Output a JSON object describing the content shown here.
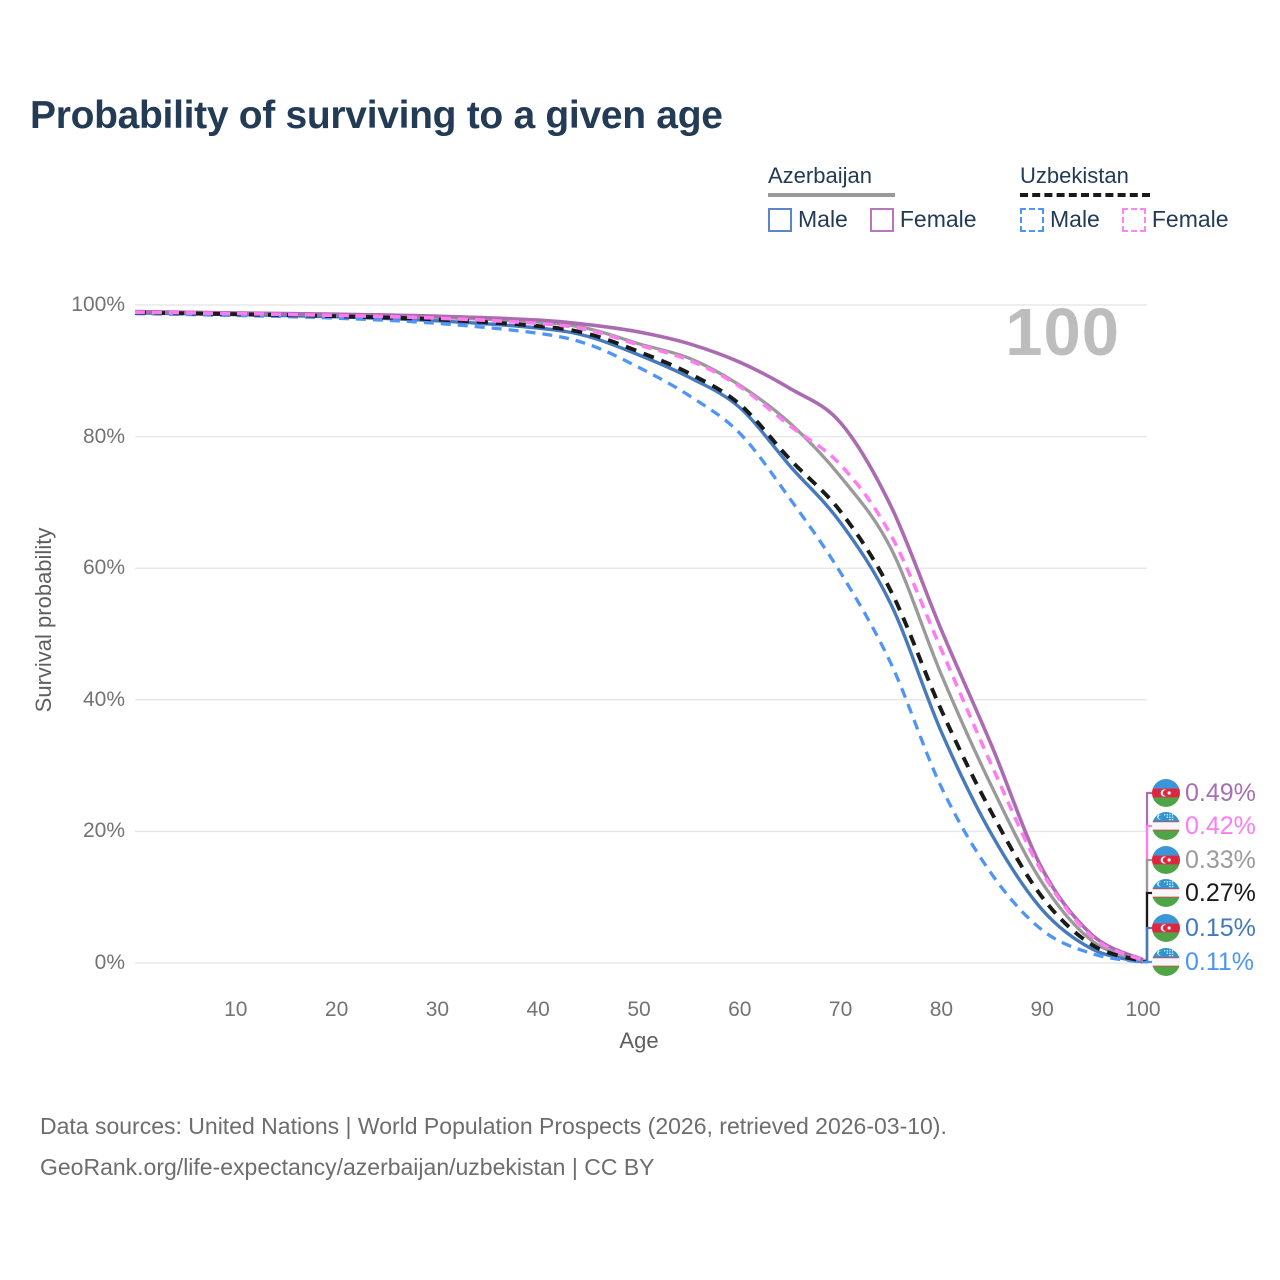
{
  "title": "Probability of surviving to a given age",
  "watermark": "100",
  "legend": {
    "groups": [
      {
        "name": "Azerbaijan",
        "line_style": "solid",
        "underline_color": "#9a9a9a",
        "items": [
          {
            "label": "Male",
            "color": "#5b87c7",
            "dashed": false
          },
          {
            "label": "Female",
            "color": "#b877bd",
            "dashed": false
          }
        ]
      },
      {
        "name": "Uzbekistan",
        "line_style": "dashed",
        "underline_color": "#1a1a1a",
        "items": [
          {
            "label": "Male",
            "color": "#4e95f7",
            "dashed": true
          },
          {
            "label": "Female",
            "color": "#ff85f0",
            "dashed": true
          }
        ]
      }
    ]
  },
  "chart_data": {
    "type": "line",
    "title": "Probability of surviving to a given age",
    "xlabel": "Age",
    "ylabel": "Survival probability",
    "xlim": [
      0,
      100
    ],
    "ylim": [
      0,
      100
    ],
    "grid": "horizontal-only",
    "x_ticks": [
      10,
      20,
      30,
      40,
      50,
      60,
      70,
      80,
      90,
      100
    ],
    "y_ticks": [
      {
        "value": 0,
        "label": "0%"
      },
      {
        "value": 20,
        "label": "20%"
      },
      {
        "value": 40,
        "label": "40%"
      },
      {
        "value": 60,
        "label": "60%"
      },
      {
        "value": 80,
        "label": "80%"
      },
      {
        "value": 100,
        "label": "100%"
      }
    ],
    "x": [
      0,
      10,
      20,
      30,
      40,
      45,
      50,
      55,
      60,
      65,
      70,
      75,
      80,
      85,
      90,
      95,
      100
    ],
    "series": [
      {
        "id": "az_male",
        "name": "Azerbaijan Male",
        "color": "#467abb",
        "dash": "",
        "width": 3.4,
        "values": [
          98.8,
          98.55,
          98.2,
          97.6,
          96.5,
          95.2,
          92.4,
          89.0,
          84.4,
          75.5,
          66.9,
          54.5,
          35.1,
          19.5,
          8.1,
          2.1,
          0.15
        ]
      },
      {
        "id": "az_all",
        "name": "Azerbaijan (both sexes)",
        "color": "#9a9a9a",
        "dash": "",
        "width": 3.3,
        "values": [
          98.95,
          98.75,
          98.5,
          98.1,
          97.4,
          96.4,
          94.1,
          91.9,
          87.8,
          82.0,
          73.9,
          63.0,
          43.8,
          26.8,
          12.2,
          3.3,
          0.33
        ]
      },
      {
        "id": "az_female",
        "name": "Azerbaijan Female",
        "color": "#ab6bb0",
        "dash": "",
        "width": 3.6,
        "values": [
          99.0,
          98.8,
          98.6,
          98.3,
          97.7,
          97.0,
          95.9,
          94.1,
          91.3,
          87.3,
          82.1,
          69.4,
          50.6,
          33.0,
          14.3,
          4.2,
          0.49
        ]
      },
      {
        "id": "uz_male",
        "name": "Uzbekistan Male",
        "color": "#4e95f7",
        "dash": "10 7",
        "width": 3.3,
        "values": [
          98.7,
          98.4,
          98.0,
          97.2,
          95.7,
          94.0,
          90.5,
          86.2,
          80.5,
          70.5,
          59.3,
          45.5,
          26.7,
          13.5,
          5.0,
          1.4,
          0.11
        ]
      },
      {
        "id": "uz_all",
        "name": "Uzbekistan (both sexes)",
        "color": "#1a1a1a",
        "dash": "11 8",
        "width": 3.9,
        "values": [
          98.85,
          98.6,
          98.3,
          97.8,
          96.8,
          95.6,
          92.9,
          89.6,
          84.9,
          76.5,
          68.6,
          56.5,
          38.4,
          22.8,
          10.0,
          2.7,
          0.27
        ]
      },
      {
        "id": "uz_female",
        "name": "Uzbekistan Female",
        "color": "#ff7cf0",
        "dash": "10 7",
        "width": 3.5,
        "values": [
          98.9,
          98.7,
          98.4,
          98.0,
          97.2,
          96.2,
          93.9,
          91.6,
          87.6,
          81.6,
          75.7,
          65.0,
          47.6,
          30.0,
          13.8,
          3.9,
          0.42
        ]
      }
    ],
    "end_labels": [
      {
        "text": "0.49%",
        "series": "az_female",
        "flag": "azerbaijan",
        "color": "#a96fb3"
      },
      {
        "text": "0.42%",
        "series": "uz_female",
        "flag": "uzbekistan",
        "color": "#ff7cf0"
      },
      {
        "text": "0.33%",
        "series": "az_all",
        "flag": "azerbaijan",
        "color": "#9a9a9a"
      },
      {
        "text": "0.27%",
        "series": "uz_all",
        "flag": "uzbekistan",
        "color": "#1a1a1a"
      },
      {
        "text": "0.15%",
        "series": "az_male",
        "flag": "azerbaijan",
        "color": "#4379bd"
      },
      {
        "text": "0.11%",
        "series": "uz_male",
        "flag": "uzbekistan",
        "color": "#4e95f7"
      }
    ]
  },
  "footer": {
    "line1": "Data sources: United Nations | World Population Prospects (2026, retrieved 2026-03-10).",
    "line2": "GeoRank.org/life-expectancy/azerbaijan/uzbekistan | CC BY"
  },
  "colors": {
    "title_text": "#233b55",
    "axis_text": "#737373",
    "gridline": "#e9e9e9",
    "watermark": "#bdbdbd",
    "footer_text": "#6d6d6d"
  }
}
